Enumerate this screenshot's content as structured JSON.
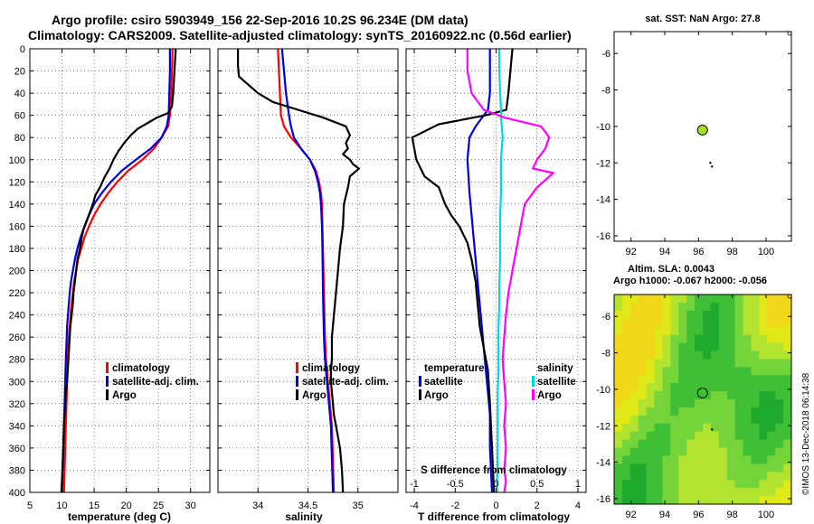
{
  "figure": {
    "title_line1": "Argo profile: csiro 5903949_156 22-Sep-2016 10.2S 96.234E (DM data)",
    "title_line2": "Climatology: CARS2009. Satellite-adjusted climatology: synTS_20160922.nc (0.56d earlier)",
    "credit": "©IMOS 13-Dec-2018 06:14:38"
  },
  "colors": {
    "climatology": "#ff0000",
    "satellite": "#0000dd",
    "argo": "#000000",
    "sal_satellite": "#00d8e0",
    "sal_argo": "#ff00ff",
    "map_marker": "#a8e020"
  },
  "chart_data": [
    {
      "id": "temperature",
      "type": "line",
      "xlabel": "temperature (deg C)",
      "ylabel": "",
      "xlim": [
        5,
        33
      ],
      "ylim": [
        400,
        0
      ],
      "xticks": [
        5,
        10,
        15,
        20,
        25,
        30
      ],
      "yticks": [
        0,
        20,
        40,
        60,
        80,
        100,
        120,
        140,
        160,
        180,
        200,
        220,
        240,
        260,
        280,
        300,
        320,
        340,
        360,
        380,
        400
      ],
      "legend": [
        "climatology",
        "satellite-adj. clim.",
        "Argo"
      ],
      "series": [
        {
          "name": "climatology",
          "color": "#ff0000",
          "x": [
            27.2,
            27.1,
            27.0,
            26.8,
            26.5,
            25.5,
            24.3,
            22.5,
            20.3,
            18.6,
            17.2,
            16.0,
            15.0,
            14.2,
            13.5,
            13.0,
            12.5,
            12.2,
            11.9,
            11.7,
            11.4,
            11.2,
            11.0,
            10.9,
            10.8,
            10.7,
            10.6,
            10.5,
            10.4,
            10.3
          ],
          "y": [
            0,
            20,
            40,
            60,
            70,
            80,
            90,
            100,
            110,
            120,
            130,
            140,
            150,
            160,
            170,
            180,
            190,
            200,
            210,
            220,
            235,
            250,
            265,
            280,
            300,
            320,
            340,
            360,
            380,
            400
          ]
        },
        {
          "name": "satellite-adj. clim.",
          "color": "#0000dd",
          "x": [
            26.8,
            26.8,
            26.7,
            26.6,
            26.3,
            25.5,
            23.8,
            21.5,
            19.3,
            17.6,
            16.2,
            15.0,
            14.2,
            13.5,
            12.9,
            12.4,
            12.0,
            11.7,
            11.4,
            11.2,
            11.0,
            10.8,
            10.7,
            10.6,
            10.5,
            10.4,
            10.3,
            10.2,
            10.1,
            10.0
          ],
          "y": [
            0,
            20,
            40,
            60,
            70,
            80,
            90,
            100,
            110,
            120,
            130,
            140,
            150,
            160,
            170,
            180,
            190,
            200,
            210,
            220,
            235,
            250,
            265,
            280,
            300,
            320,
            340,
            360,
            380,
            400
          ]
        },
        {
          "name": "Argo",
          "color": "#000000",
          "x": [
            27.7,
            27.5,
            27.3,
            27.1,
            26.5,
            24.8,
            23.6,
            21.8,
            20.7,
            19.8,
            18.8,
            18.0,
            17.4,
            16.6,
            16.0,
            15.2,
            14.8,
            14.3,
            13.8,
            13.3,
            13.0,
            12.8,
            12.4,
            12.2,
            12.0,
            11.8,
            11.7,
            11.5,
            11.3,
            11.2,
            11.1,
            11.0,
            10.9,
            10.8,
            10.6,
            10.5,
            10.3,
            10.2,
            10.1,
            10.0,
            9.9
          ],
          "y": [
            0,
            20,
            40,
            52,
            58,
            62,
            66,
            72,
            78,
            84,
            92,
            100,
            108,
            116,
            124,
            132,
            140,
            148,
            156,
            164,
            172,
            180,
            190,
            200,
            210,
            220,
            230,
            240,
            250,
            260,
            270,
            280,
            290,
            300,
            310,
            320,
            340,
            360,
            375,
            390,
            400
          ]
        }
      ]
    },
    {
      "id": "salinity",
      "type": "line",
      "xlabel": "salinity",
      "xlim": [
        33.6,
        35.4
      ],
      "ylim": [
        400,
        0
      ],
      "xticks": [
        34,
        34.5,
        35
      ],
      "xticklabels": [
        "34",
        "34.5",
        "35"
      ],
      "legend": [
        "climatology",
        "satellite-adj. clim.",
        "Argo"
      ],
      "series": [
        {
          "name": "climatology",
          "color": "#ff0000",
          "x": [
            34.2,
            34.21,
            34.22,
            34.23,
            34.26,
            34.33,
            34.43,
            34.52,
            34.58,
            34.61,
            34.63,
            34.64,
            34.645,
            34.65,
            34.66,
            34.67,
            34.68,
            34.7,
            34.72,
            34.74,
            34.75,
            34.76
          ],
          "y": [
            0,
            20,
            40,
            60,
            70,
            80,
            90,
            100,
            110,
            120,
            130,
            140,
            160,
            180,
            220,
            260,
            280,
            300,
            320,
            340,
            370,
            400
          ]
        },
        {
          "name": "satellite-adj. clim.",
          "color": "#0000dd",
          "x": [
            34.24,
            34.26,
            34.28,
            34.31,
            34.33,
            34.36,
            34.43,
            34.52,
            34.57,
            34.6,
            34.62,
            34.63,
            34.64,
            34.645,
            34.65,
            34.66,
            34.67,
            34.69,
            34.71,
            34.73,
            34.74,
            34.75
          ],
          "y": [
            0,
            20,
            40,
            60,
            70,
            80,
            90,
            100,
            110,
            120,
            130,
            140,
            160,
            180,
            220,
            260,
            280,
            300,
            320,
            340,
            370,
            400
          ]
        },
        {
          "name": "Argo",
          "color": "#000000",
          "x": [
            33.8,
            33.8,
            33.81,
            34.0,
            34.15,
            34.4,
            34.65,
            34.88,
            34.92,
            34.88,
            34.9,
            34.85,
            34.92,
            34.95,
            35.01,
            34.92,
            34.9,
            34.86,
            34.85,
            34.82,
            34.8,
            34.78,
            34.76,
            34.75,
            34.74,
            34.74,
            34.73,
            34.73,
            34.74,
            34.75,
            34.76,
            34.78,
            34.8,
            34.82,
            34.84,
            34.85
          ],
          "y": [
            0,
            15,
            25,
            40,
            48,
            55,
            62,
            70,
            78,
            85,
            90,
            95,
            100,
            104,
            108,
            115,
            125,
            140,
            160,
            180,
            200,
            220,
            240,
            250,
            260,
            280,
            290,
            300,
            310,
            320,
            330,
            340,
            350,
            360,
            380,
            400
          ]
        }
      ]
    },
    {
      "id": "difference",
      "type": "line",
      "xlabel": "T difference from climatology",
      "xlabel_top": "S difference from climatology",
      "xlim": [
        -4.4,
        4.4
      ],
      "ylim": [
        400,
        0
      ],
      "xticks": [
        -4,
        -2,
        0,
        2,
        4
      ],
      "xticks_top": [
        -1,
        -0.5,
        0,
        0.5,
        1
      ],
      "xticklabels_top": [
        "-1",
        "-0.5",
        "0",
        "0.5",
        "1"
      ],
      "secondary_xlim": [
        -1.1,
        1.1
      ],
      "legend_temperature": [
        "temperature",
        "satellite",
        "Argo"
      ],
      "legend_salinity": [
        "salinity",
        "satellite",
        "Argo"
      ],
      "series": [
        {
          "name": "temperature satellite",
          "axis": "T",
          "color": "#0000dd",
          "x": [
            -0.3,
            -0.3,
            -0.3,
            -0.4,
            -0.6,
            -1.0,
            -1.3,
            -1.4,
            -1.35,
            -1.3,
            -1.2,
            -1.1,
            -1.0,
            -0.9,
            -0.8,
            -0.7,
            -0.6,
            -0.5,
            -0.4,
            -0.3,
            -0.3,
            -0.2
          ],
          "y": [
            0,
            20,
            40,
            55,
            60,
            70,
            80,
            100,
            115,
            130,
            150,
            170,
            190,
            210,
            230,
            250,
            270,
            290,
            310,
            330,
            360,
            400
          ]
        },
        {
          "name": "temperature Argo",
          "axis": "T",
          "color": "#000000",
          "x": [
            0.8,
            0.7,
            0.6,
            0.5,
            -0.5,
            -2.8,
            -4.1,
            -3.9,
            -3.5,
            -2.8,
            -2.5,
            -2.2,
            -1.8,
            -1.4,
            -1.2,
            -1.0,
            -0.9,
            -0.8,
            -0.6,
            -0.4,
            -0.3,
            -0.2,
            -0.1
          ],
          "y": [
            0,
            20,
            40,
            55,
            60,
            68,
            80,
            100,
            115,
            125,
            140,
            150,
            160,
            175,
            190,
            210,
            230,
            250,
            270,
            290,
            320,
            360,
            400
          ]
        },
        {
          "name": "salinity satellite",
          "axis": "S",
          "color": "#00d8e0",
          "x": [
            0.04,
            0.04,
            0.05,
            0.06,
            0.06,
            0.07,
            0.08,
            0.06,
            0.06,
            0.06,
            0.05,
            0.05,
            0.05,
            0.04,
            0.04,
            0.03,
            0.03,
            0.03,
            0.02,
            0.02,
            0.02,
            0.01
          ],
          "y": [
            0,
            20,
            40,
            55,
            60,
            70,
            80,
            100,
            115,
            130,
            150,
            170,
            190,
            210,
            230,
            250,
            270,
            290,
            310,
            330,
            360,
            400
          ]
        },
        {
          "name": "salinity Argo",
          "axis": "S",
          "color": "#ff00ff",
          "x": [
            -0.35,
            -0.35,
            -0.3,
            -0.15,
            0.1,
            0.55,
            0.65,
            0.6,
            0.5,
            0.45,
            0.7,
            0.5,
            0.35,
            0.3,
            0.25,
            0.2,
            0.15,
            0.12,
            0.1,
            0.08,
            0.1,
            0.12,
            0.1,
            0.12,
            0.1,
            0.12,
            0.1
          ],
          "y": [
            0,
            20,
            40,
            55,
            62,
            70,
            80,
            90,
            100,
            108,
            112,
            125,
            140,
            160,
            180,
            200,
            220,
            240,
            260,
            280,
            300,
            320,
            340,
            360,
            380,
            390,
            400
          ]
        }
      ]
    },
    {
      "id": "sst-map",
      "type": "scatter",
      "title": "sat. SST: NaN Argo: 27.8",
      "xlim": [
        91,
        101.5
      ],
      "ylim": [
        -16.3,
        -4.8
      ],
      "xticks": [
        92,
        94,
        96,
        98,
        100
      ],
      "yticks": [
        -6,
        -8,
        -10,
        -12,
        -14,
        -16
      ],
      "points": [
        {
          "label": "Argo position",
          "x": 96.234,
          "y": -10.2,
          "color": "#a8e020"
        },
        {
          "label": "track",
          "x": 96.8,
          "y": -12.2,
          "color": "#000000"
        },
        {
          "label": "track",
          "x": 96.7,
          "y": -12.0,
          "color": "#000000"
        }
      ]
    },
    {
      "id": "sla-map",
      "type": "heatmap",
      "title_line1": "Altim. SLA: 0.0043",
      "title_line2": "Argo h1000: -0.067 h2000: -0.056",
      "xlim": [
        91,
        101.5
      ],
      "ylim": [
        -16.3,
        -4.8
      ],
      "xticks": [
        92,
        94,
        96,
        98,
        100
      ],
      "yticks": [
        -6,
        -8,
        -10,
        -12,
        -14,
        -16
      ],
      "field_colors": [
        "#1faa2e",
        "#3ebf36",
        "#74d43a",
        "#b2e32e",
        "#e0e818",
        "#f0d818"
      ],
      "points": [
        {
          "label": "Argo position",
          "x": 96.234,
          "y": -10.2
        },
        {
          "label": "track",
          "x": 96.8,
          "y": -12.2
        }
      ]
    }
  ]
}
